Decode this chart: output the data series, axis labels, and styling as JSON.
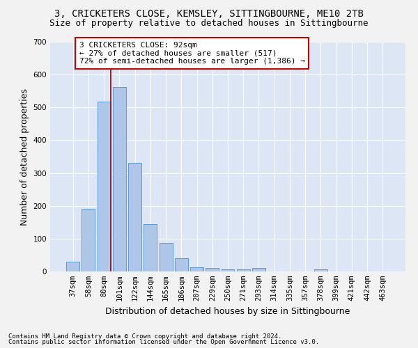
{
  "title1": "3, CRICKETERS CLOSE, KEMSLEY, SITTINGBOURNE, ME10 2TB",
  "title2": "Size of property relative to detached houses in Sittingbourne",
  "xlabel": "Distribution of detached houses by size in Sittingbourne",
  "ylabel": "Number of detached properties",
  "footnote1": "Contains HM Land Registry data © Crown copyright and database right 2024.",
  "footnote2": "Contains public sector information licensed under the Open Government Licence v3.0.",
  "categories": [
    "37sqm",
    "58sqm",
    "80sqm",
    "101sqm",
    "122sqm",
    "144sqm",
    "165sqm",
    "186sqm",
    "207sqm",
    "229sqm",
    "250sqm",
    "271sqm",
    "293sqm",
    "314sqm",
    "335sqm",
    "357sqm",
    "378sqm",
    "399sqm",
    "421sqm",
    "442sqm",
    "463sqm"
  ],
  "values": [
    30,
    190,
    517,
    562,
    330,
    145,
    87,
    40,
    13,
    11,
    6,
    6,
    11,
    0,
    0,
    0,
    6,
    0,
    0,
    0,
    0
  ],
  "bar_color": "#aec6e8",
  "bar_edge_color": "#5b9bd5",
  "plot_bg_color": "#dce6f5",
  "fig_bg_color": "#f2f2f2",
  "grid_color": "#ffffff",
  "vline_color": "#8b0000",
  "ylim": [
    0,
    700
  ],
  "yticks": [
    0,
    100,
    200,
    300,
    400,
    500,
    600,
    700
  ],
  "annotation_text": "3 CRICKETERS CLOSE: 92sqm\n← 27% of detached houses are smaller (517)\n72% of semi-detached houses are larger (1,386) →",
  "annotation_box_color": "#ffffff",
  "annotation_box_edge": "#cc0000",
  "title1_fontsize": 10,
  "title2_fontsize": 9,
  "xlabel_fontsize": 9,
  "ylabel_fontsize": 9,
  "tick_fontsize": 7.5,
  "annot_fontsize": 8,
  "footnote_fontsize": 6.5,
  "vline_pos": 2.43
}
